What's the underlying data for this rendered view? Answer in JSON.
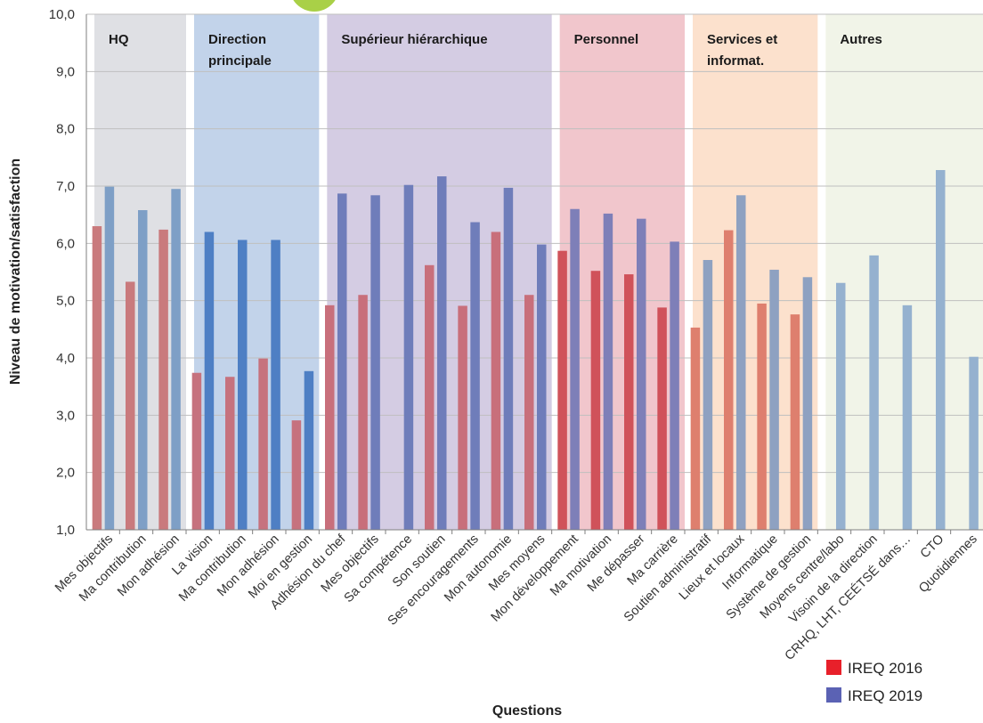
{
  "chart_data": {
    "type": "bar",
    "xlabel": "Questions",
    "ylabel": "Niveau de motivation/satisfaction",
    "ylim": [
      1.0,
      10.0
    ],
    "yticks": [
      "1,0",
      "2,0",
      "3,0",
      "4,0",
      "5,0",
      "6,0",
      "7,0",
      "8,0",
      "9,0",
      "10,0"
    ],
    "grid": true,
    "legend_position": "bottom-right",
    "categories": [
      "Mes objectifs",
      "Ma contribution",
      "Mon adhésion",
      "La vision",
      "Ma contribution",
      "Mon adhésion",
      "Moi en gestion",
      "Adhésion du chef",
      "Mes objectifs",
      "Sa compétence",
      "Son soutien",
      "Ses encouragements",
      "Mon autonomie",
      "Mes moyens",
      "Mon développement",
      "Ma motivation",
      "Me dépasser",
      "Ma carrière",
      "Soutien administratif",
      "Lieux et locaux",
      "Informatique",
      "Système de gestion",
      "Moyens centre/labo",
      "Visoin de la direction",
      "CRHQ, LHT, CEÉTSÉ dans…",
      "CTO",
      "Quotidiennes"
    ],
    "series": [
      {
        "name": "IREQ 2016",
        "color": "#e8202a",
        "values": [
          6.3,
          5.33,
          6.24,
          3.74,
          3.67,
          3.99,
          2.91,
          4.92,
          5.1,
          null,
          5.62,
          4.91,
          6.2,
          5.1,
          5.87,
          5.52,
          5.46,
          4.88,
          4.53,
          6.23,
          4.95,
          4.76,
          null,
          null,
          null,
          null,
          null
        ]
      },
      {
        "name": "IREQ 2019",
        "color": "#5b62b4",
        "values": [
          6.99,
          6.58,
          6.95,
          6.2,
          6.06,
          6.06,
          3.77,
          6.87,
          6.84,
          7.02,
          7.17,
          6.37,
          6.97,
          5.98,
          6.6,
          6.52,
          6.43,
          6.03,
          5.71,
          6.84,
          5.54,
          5.41,
          5.31,
          5.79,
          4.92,
          7.28,
          4.02
        ]
      }
    ],
    "groups": [
      {
        "lines": [
          "HQ"
        ],
        "start": 0,
        "end": 2,
        "color": "#d9dadf",
        "red": "#c97a7d",
        "blue": "#7e9fc6"
      },
      {
        "lines": [
          "Direction",
          "principale"
        ],
        "start": 3,
        "end": 6,
        "color": "#b7cbe6",
        "red": "#c6727e",
        "blue": "#4e7fc4"
      },
      {
        "lines": [
          "Supérieur hiérarchique"
        ],
        "start": 7,
        "end": 13,
        "color": "#cdc3de",
        "red": "#c86f7b",
        "blue": "#6f7dba"
      },
      {
        "lines": [
          "Personnel"
        ],
        "start": 14,
        "end": 17,
        "color": "#eebcc3",
        "red": "#d0525a",
        "blue": "#7e7fb8"
      },
      {
        "lines": [
          "Services et",
          "informat."
        ],
        "start": 18,
        "end": 21,
        "color": "#fcdcc4",
        "red": "#de7f6e",
        "blue": "#8ea1c1"
      },
      {
        "lines": [
          "Autres"
        ],
        "start": 22,
        "end": 26,
        "color": "#eff2e4",
        "red": "#c97a7d",
        "blue": "#95b1cf"
      }
    ]
  }
}
